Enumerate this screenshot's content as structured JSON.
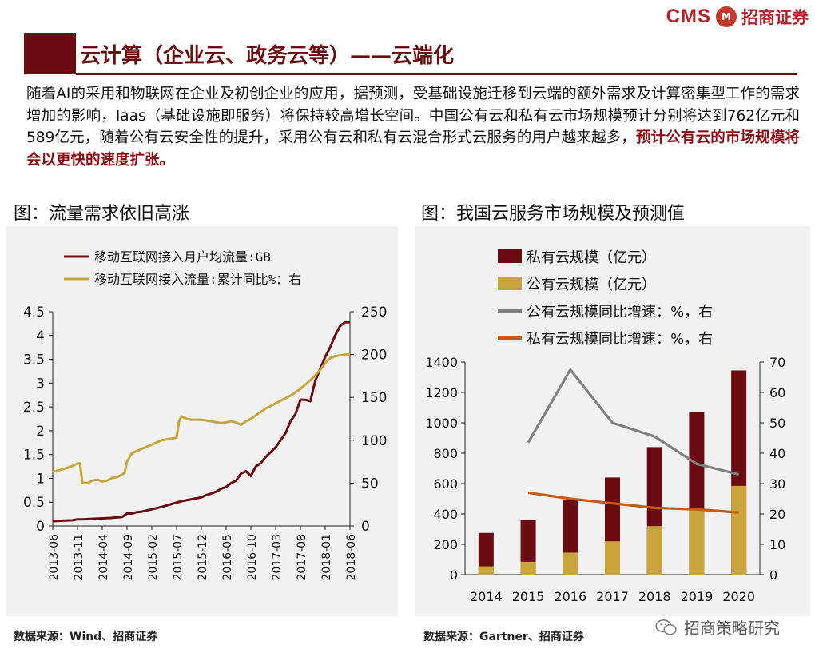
{
  "header": {
    "logo_text": "CMS",
    "logo_badge": "M",
    "logo_cn": "招商证券",
    "title": "云计算（企业云、政务云等）——云端化"
  },
  "paragraph": {
    "body": "随着AI的采用和物联网在企业及初创企业的应用，据预测，受基础设施迁移到云端的额外需求及计算密集型工作的需求增加的影响，Iaas（基础设施即服务）将保持较高增长空间。中国公有云和私有云市场规模预计分别将达到762亿元和589亿元，随着公有云安全性的提升，采用公有云和私有云混合形式云服务的用户越来越多，",
    "highlight": "预计公有云的市场规模将会以更快的速度扩张。"
  },
  "left_figure": {
    "title": "图：流量需求依旧高涨",
    "source": "数据来源：Wind、招商证券"
  },
  "right_figure": {
    "title": "图：我国云服务市场规模及预测值",
    "source": "数据来源：Gartner、招商证券"
  },
  "watermark": {
    "text": "招商策略研究"
  },
  "colors": {
    "dark_red": "#6b0c10",
    "gold": "#c9a43c",
    "gray": "#808080",
    "orange": "#c55a11",
    "brand_red": "#b0242c"
  },
  "chart_data": [
    {
      "type": "line",
      "title": "流量需求依旧高涨",
      "x_tick_labels": [
        "2013-06",
        "2013-11",
        "2014-04",
        "2014-09",
        "2015-02",
        "2015-07",
        "2015-12",
        "2016-05",
        "2016-10",
        "2017-03",
        "2017-08",
        "2018-01",
        "2018-06"
      ],
      "x_range_months": [
        0,
        60
      ],
      "y_left_range": [
        0,
        4.5
      ],
      "y_left_ticks": [
        "0",
        "0.5",
        "1",
        "1.5",
        "2",
        "2.5",
        "3",
        "3.5",
        "4",
        "4.5"
      ],
      "y_right_range": [
        0,
        250
      ],
      "y_right_ticks": [
        "0",
        "50",
        "100",
        "150",
        "200",
        "250"
      ],
      "series": [
        {
          "name": "移动互联网接入月户均流量:GB",
          "axis": "left",
          "color": "#6b0c10",
          "x": [
            0,
            2,
            4,
            5,
            6,
            8,
            10,
            12,
            14,
            15,
            16,
            17,
            18,
            20,
            22,
            24,
            26,
            28,
            30,
            31,
            32,
            33,
            34,
            35,
            36,
            37,
            38,
            39,
            40,
            41,
            42,
            43,
            44,
            45,
            46,
            47,
            48,
            49,
            50,
            51,
            52,
            53,
            54,
            55,
            56,
            57,
            58,
            59,
            60
          ],
          "y": [
            0.1,
            0.11,
            0.12,
            0.14,
            0.14,
            0.15,
            0.16,
            0.17,
            0.19,
            0.26,
            0.26,
            0.29,
            0.3,
            0.35,
            0.4,
            0.46,
            0.52,
            0.56,
            0.6,
            0.65,
            0.68,
            0.72,
            0.78,
            0.82,
            0.9,
            0.95,
            1.1,
            1.15,
            1.05,
            1.25,
            1.32,
            1.45,
            1.55,
            1.65,
            1.8,
            1.95,
            2.2,
            2.35,
            2.65,
            2.65,
            2.62,
            3.05,
            3.3,
            3.55,
            3.75,
            4.0,
            4.2,
            4.28,
            4.28
          ]
        },
        {
          "name": "移动互联网接入流量:累计同比%：右",
          "axis": "right",
          "color": "#c9a43c",
          "x": [
            0,
            2,
            4,
            5,
            5.5,
            6,
            7,
            8,
            9,
            10,
            11,
            12,
            13,
            14,
            14.5,
            15,
            16,
            18,
            20,
            22,
            24,
            25,
            25.5,
            26,
            27,
            28,
            30,
            32,
            34,
            35,
            36,
            37,
            38,
            39,
            40,
            41,
            42,
            43,
            44,
            46,
            48,
            50,
            52,
            54,
            55,
            56,
            57,
            58,
            59,
            60
          ],
          "y": [
            63,
            66,
            70,
            73,
            73,
            50,
            50,
            53,
            54,
            52,
            53,
            56,
            57,
            60,
            62,
            75,
            85,
            90,
            95,
            100,
            102,
            103,
            122,
            128,
            125,
            124,
            124,
            122,
            120,
            121,
            122,
            121,
            118,
            122,
            125,
            129,
            133,
            137,
            140,
            146,
            152,
            160,
            170,
            182,
            190,
            196,
            198,
            199,
            200,
            200
          ]
        }
      ]
    },
    {
      "type": "bar",
      "title": "我国云服务市场规模及预测值",
      "categories": [
        "2014",
        "2015",
        "2016",
        "2017",
        "2018",
        "2019",
        "2020"
      ],
      "y_left_range": [
        0,
        1400
      ],
      "y_left_ticks": [
        "0",
        "200",
        "400",
        "600",
        "800",
        "1000",
        "1200",
        "1400"
      ],
      "y_right_range": [
        0,
        70
      ],
      "y_right_ticks": [
        "0",
        "10",
        "20",
        "30",
        "40",
        "50",
        "60",
        "70"
      ],
      "series": [
        {
          "name": "私有云规模（亿元）",
          "kind": "bar",
          "axis": "left",
          "stack": "total",
          "color": "#6b0c10",
          "values": [
            275,
            360,
            495,
            640,
            840,
            1070,
            1345
          ]
        },
        {
          "name": "公有云规模（亿元）",
          "kind": "bar",
          "axis": "left",
          "stack": "overlay",
          "color": "#c9a43c",
          "values": [
            55,
            85,
            145,
            220,
            320,
            430,
            585
          ]
        },
        {
          "name": "公有云规模同比增速：%，右",
          "kind": "line",
          "axis": "right",
          "color": "#808080",
          "values": [
            null,
            43.5,
            67.5,
            50,
            45.5,
            36.5,
            33
          ]
        },
        {
          "name": "私有云规模同比增速：%，右",
          "kind": "line",
          "axis": "right",
          "color": "#c55a11",
          "values": [
            null,
            27,
            25,
            23.5,
            22,
            21.5,
            20.5
          ]
        }
      ]
    }
  ]
}
